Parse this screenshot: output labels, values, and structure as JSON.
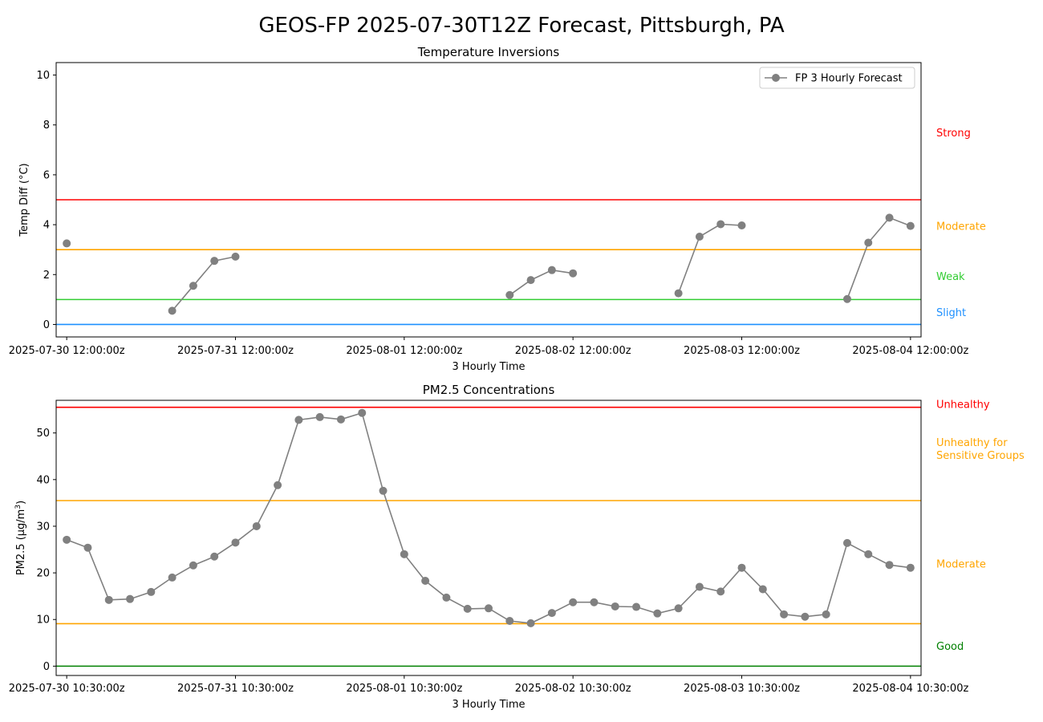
{
  "figure": {
    "title": "GEOS-FP 2025-07-30T12Z Forecast, Pittsburgh, PA"
  },
  "chart_data": [
    {
      "type": "line",
      "title": "Temperature Inversions",
      "xlabel": "3 Hourly Time",
      "ylabel": "Temp Diff (°C)",
      "ylim": [
        -0.5,
        10.5
      ],
      "yticks": [
        0,
        2,
        4,
        6,
        8,
        10
      ],
      "grid": false,
      "legend": {
        "placement": "upper right",
        "entries": [
          "FP 3 Hourly Forecast"
        ]
      },
      "x_tick_labels": [
        "2025-07-30 12:00:00z",
        "2025-07-31 12:00:00z",
        "2025-08-01 12:00:00z",
        "2025-08-02 12:00:00z",
        "2025-08-03 12:00:00z",
        "2025-08-04 12:00:00z"
      ],
      "thresholds": [
        {
          "label": "Strong",
          "value": 5,
          "label_value": 7.7,
          "color": "#ff0000"
        },
        {
          "label": "Moderate",
          "value": 3,
          "label_value": 3.95,
          "color": "#ffa500"
        },
        {
          "label": "Weak",
          "value": 1,
          "label_value": 1.95,
          "color": "#32cd32"
        },
        {
          "label": "Slight",
          "value": 0,
          "label_value": 0.5,
          "color": "#1e90ff"
        }
      ],
      "series": [
        {
          "name": "FP 3 Hourly Forecast",
          "color": "#808080",
          "points": [
            {
              "x": "2025-07-30 12:00:00z",
              "y": 3.25
            },
            {
              "x": "2025-07-31 03:00:00z",
              "y": null
            },
            {
              "x": "2025-07-31 03:00:00z",
              "y": 0.55
            },
            {
              "x": "2025-07-31 06:00:00z",
              "y": 1.55
            },
            {
              "x": "2025-07-31 09:00:00z",
              "y": 2.55
            },
            {
              "x": "2025-07-31 12:00:00z",
              "y": 2.72
            },
            {
              "x": "2025-08-02 03:00:00z",
              "y": null
            },
            {
              "x": "2025-08-02 03:00:00z",
              "y": 1.18
            },
            {
              "x": "2025-08-02 06:00:00z",
              "y": 1.78
            },
            {
              "x": "2025-08-02 09:00:00z",
              "y": 2.18
            },
            {
              "x": "2025-08-02 12:00:00z",
              "y": 2.05
            },
            {
              "x": "2025-08-03 03:00:00z",
              "y": null
            },
            {
              "x": "2025-08-03 03:00:00z",
              "y": 1.25
            },
            {
              "x": "2025-08-03 06:00:00z",
              "y": 3.52
            },
            {
              "x": "2025-08-03 09:00:00z",
              "y": 4.02
            },
            {
              "x": "2025-08-03 12:00:00z",
              "y": 3.97
            },
            {
              "x": "2025-08-04 03:00:00z",
              "y": null
            },
            {
              "x": "2025-08-04 03:00:00z",
              "y": 1.02
            },
            {
              "x": "2025-08-04 06:00:00z",
              "y": 3.28
            },
            {
              "x": "2025-08-04 09:00:00z",
              "y": 4.28
            },
            {
              "x": "2025-08-04 12:00:00z",
              "y": 3.95
            }
          ]
        }
      ]
    },
    {
      "type": "line",
      "title": "PM2.5 Concentrations",
      "xlabel": "3 Hourly Time",
      "ylabel_prefix": "PM2.5 (μg/m",
      "ylabel_sup": "3",
      "ylabel_suffix": ")",
      "ylim": [
        -2,
        57
      ],
      "yticks": [
        0,
        10,
        20,
        30,
        40,
        50
      ],
      "grid": false,
      "x_tick_labels": [
        "2025-07-30 10:30:00z",
        "2025-07-31 10:30:00z",
        "2025-08-01 10:30:00z",
        "2025-08-02 10:30:00z",
        "2025-08-03 10:30:00z",
        "2025-08-04 10:30:00z"
      ],
      "thresholds": [
        {
          "label": "Unhealthy",
          "value": 55.5,
          "label_value": 56.2,
          "color": "#ff0000"
        },
        {
          "label": "Unhealthy for Sensitive Groups",
          "lines": [
            "Unhealthy for",
            "Sensitive Groups"
          ],
          "value": 35.5,
          "label_value": 46.5,
          "color": "#ffa500"
        },
        {
          "label": "Moderate",
          "value": 9.1,
          "label_value": 22,
          "color": "#ffa500"
        },
        {
          "label": "Good",
          "value": 0,
          "label_value": 4.4,
          "color": "#008000"
        }
      ],
      "series": [
        {
          "name": "",
          "color": "#808080",
          "points": [
            {
              "x": "2025-07-30 10:30:00z",
              "y": 27.1
            },
            {
              "x": "2025-07-30 13:30:00z",
              "y": 25.4
            },
            {
              "x": "2025-07-30 16:30:00z",
              "y": 14.2
            },
            {
              "x": "2025-07-30 19:30:00z",
              "y": 14.4
            },
            {
              "x": "2025-07-30 22:30:00z",
              "y": 15.9
            },
            {
              "x": "2025-07-31 01:30:00z",
              "y": 19.0
            },
            {
              "x": "2025-07-31 04:30:00z",
              "y": 21.6
            },
            {
              "x": "2025-07-31 07:30:00z",
              "y": 23.5
            },
            {
              "x": "2025-07-31 10:30:00z",
              "y": 26.5
            },
            {
              "x": "2025-07-31 13:30:00z",
              "y": 30.0
            },
            {
              "x": "2025-07-31 16:30:00z",
              "y": 38.8
            },
            {
              "x": "2025-07-31 19:30:00z",
              "y": 52.8
            },
            {
              "x": "2025-07-31 22:30:00z",
              "y": 53.4
            },
            {
              "x": "2025-08-01 01:30:00z",
              "y": 52.9
            },
            {
              "x": "2025-08-01 04:30:00z",
              "y": 54.3
            },
            {
              "x": "2025-08-01 07:30:00z",
              "y": 37.6
            },
            {
              "x": "2025-08-01 10:30:00z",
              "y": 24.0
            },
            {
              "x": "2025-08-01 13:30:00z",
              "y": 18.3
            },
            {
              "x": "2025-08-01 16:30:00z",
              "y": 14.7
            },
            {
              "x": "2025-08-01 19:30:00z",
              "y": 12.3
            },
            {
              "x": "2025-08-01 22:30:00z",
              "y": 12.4
            },
            {
              "x": "2025-08-02 01:30:00z",
              "y": 9.7
            },
            {
              "x": "2025-08-02 04:30:00z",
              "y": 9.2
            },
            {
              "x": "2025-08-02 07:30:00z",
              "y": 11.4
            },
            {
              "x": "2025-08-02 10:30:00z",
              "y": 13.7
            },
            {
              "x": "2025-08-02 13:30:00z",
              "y": 13.7
            },
            {
              "x": "2025-08-02 16:30:00z",
              "y": 12.8
            },
            {
              "x": "2025-08-02 19:30:00z",
              "y": 12.7
            },
            {
              "x": "2025-08-02 22:30:00z",
              "y": 11.3
            },
            {
              "x": "2025-08-03 01:30:00z",
              "y": 12.4
            },
            {
              "x": "2025-08-03 04:30:00z",
              "y": 17.0
            },
            {
              "x": "2025-08-03 07:30:00z",
              "y": 16.0
            },
            {
              "x": "2025-08-03 10:30:00z",
              "y": 21.1
            },
            {
              "x": "2025-08-03 13:30:00z",
              "y": 16.5
            },
            {
              "x": "2025-08-03 16:30:00z",
              "y": 11.1
            },
            {
              "x": "2025-08-03 19:30:00z",
              "y": 10.6
            },
            {
              "x": "2025-08-03 22:30:00z",
              "y": 11.1
            },
            {
              "x": "2025-08-04 01:30:00z",
              "y": 26.4
            },
            {
              "x": "2025-08-04 04:30:00z",
              "y": 24.0
            },
            {
              "x": "2025-08-04 07:30:00z",
              "y": 21.7
            },
            {
              "x": "2025-08-04 10:30:00z",
              "y": 21.1
            }
          ]
        }
      ]
    }
  ]
}
